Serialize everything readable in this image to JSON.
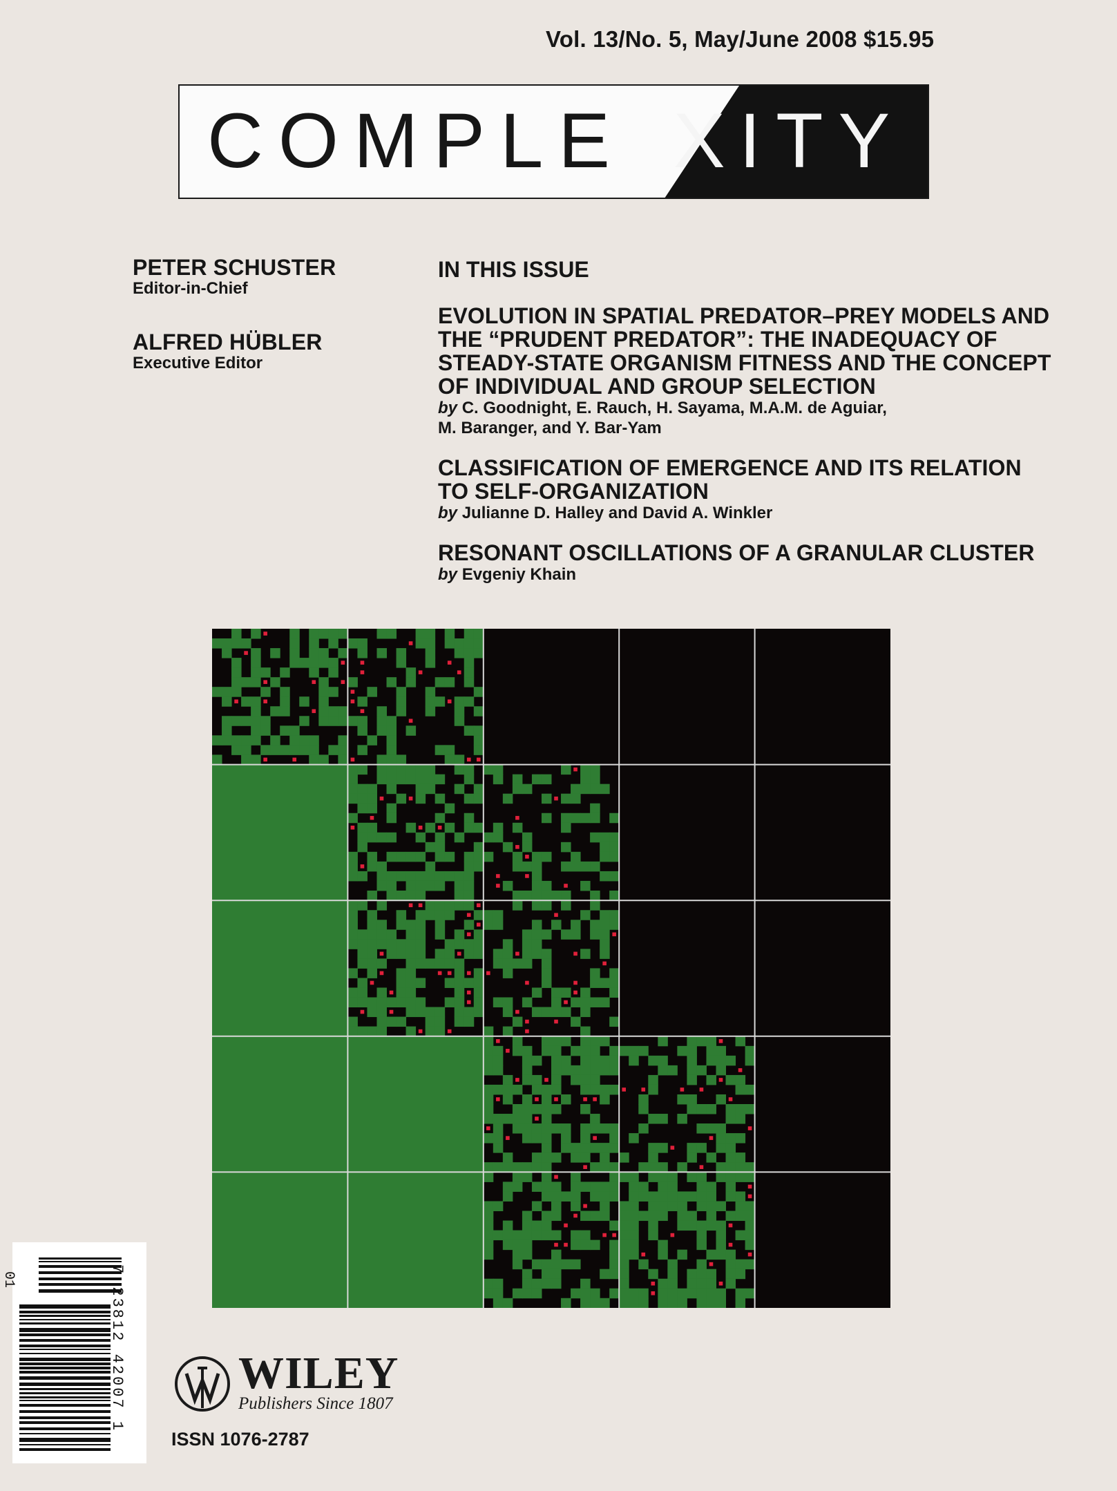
{
  "header": {
    "issue": "Vol. 13/No. 5, May/June  2008  $15.95"
  },
  "masthead": {
    "title_left": "COMPLE",
    "title_x": "X",
    "title_right": "ITY"
  },
  "editors": [
    {
      "name": "PETER SCHUSTER",
      "role": "Editor-in-Chief"
    },
    {
      "name": "ALFRED HÜBLER",
      "role": "Executive Editor"
    }
  ],
  "toc": {
    "heading": "IN THIS ISSUE",
    "articles": [
      {
        "title_lines": [
          "EVOLUTION IN SPATIAL PREDATOR–PREY MODELS AND",
          "THE “PRUDENT PREDATOR”: THE INADEQUACY OF",
          "STEADY-STATE ORGANISM FITNESS AND THE CONCEPT",
          "OF INDIVIDUAL AND GROUP SELECTION"
        ],
        "by": "by",
        "author_lines": [
          "C. Goodnight, E. Rauch, H. Sayama, M.A.M. de Aguiar,",
          "M. Baranger, and Y. Bar-Yam"
        ]
      },
      {
        "title_lines": [
          "CLASSIFICATION OF EMERGENCE AND ITS RELATION",
          "TO SELF-ORGANIZATION"
        ],
        "by": "by",
        "author_lines": [
          "Julianne D. Halley and David A. Winkler"
        ]
      },
      {
        "title_lines": [
          "RESONANT OSCILLATIONS OF A GRANULAR CLUSTER"
        ],
        "by": "by",
        "author_lines": [
          "Evgeniy Khain"
        ]
      }
    ]
  },
  "figure": {
    "rows": 5,
    "cols": 5,
    "colors": {
      "green": "#2f7d33",
      "dark": "#0b0707",
      "red": "#e0203a",
      "grid": "#d9d9d9"
    },
    "pattern": [
      [
        "mixed",
        "mixed-dark",
        "dark",
        "dark",
        "dark"
      ],
      [
        "green",
        "mixed",
        "mixed-dark",
        "dark",
        "dark"
      ],
      [
        "green",
        "mixed-green",
        "mixed-dark",
        "dark",
        "dark"
      ],
      [
        "green",
        "green",
        "mixed-green",
        "mixed-dark",
        "dark"
      ],
      [
        "green",
        "green",
        "mixed",
        "mixed-green",
        "dark"
      ]
    ]
  },
  "barcode": {
    "digits": "7  23812  42007  1",
    "addon": "01"
  },
  "publisher": {
    "name": "WILEY",
    "tagline": "Publishers Since 1807",
    "issn": "ISSN 1076-2787"
  }
}
